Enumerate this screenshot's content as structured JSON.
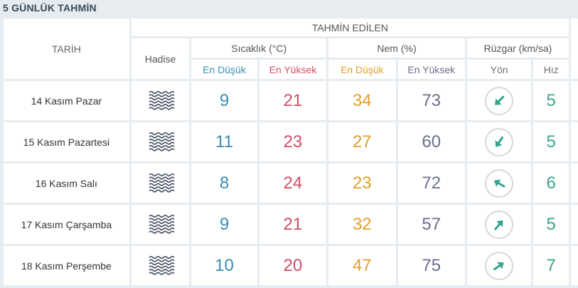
{
  "title": "5 GÜNLÜK TAHMİN",
  "headers": {
    "date": "TARİH",
    "forecast": "TAHMİN EDİLEN",
    "event": "Hadise",
    "temp": "Sıcaklık (°C)",
    "humidity": "Nem (%)",
    "wind": "Rüzgar (km/sa)",
    "low": "En Düşük",
    "high": "En Yüksek",
    "direction": "Yön",
    "speed": "Hız"
  },
  "colors": {
    "temp_low": "#3a8fb2",
    "temp_high": "#d24d68",
    "hum_low": "#e0a12c",
    "hum_high": "#6c6e8c",
    "wind": "#3aa58e"
  },
  "rows": [
    {
      "date": "14 Kasım Pazar",
      "icon": "fog-icon",
      "temp_low": "9",
      "temp_high": "21",
      "hum_low": "34",
      "hum_high": "73",
      "wind_dir_deg": 225,
      "wind_speed": "5"
    },
    {
      "date": "15 Kasım Pazartesi",
      "icon": "fog-icon",
      "temp_low": "11",
      "temp_high": "23",
      "hum_low": "27",
      "hum_high": "60",
      "wind_dir_deg": 215,
      "wind_speed": "5"
    },
    {
      "date": "16 Kasım Salı",
      "icon": "fog-icon",
      "temp_low": "8",
      "temp_high": "24",
      "hum_low": "23",
      "hum_high": "72",
      "wind_dir_deg": 300,
      "wind_speed": "6"
    },
    {
      "date": "17 Kasım Çarşamba",
      "icon": "fog-icon",
      "temp_low": "9",
      "temp_high": "21",
      "hum_low": "32",
      "hum_high": "57",
      "wind_dir_deg": 40,
      "wind_speed": "5"
    },
    {
      "date": "18 Kasım Perşembe",
      "icon": "fog-icon",
      "temp_low": "10",
      "temp_high": "20",
      "hum_low": "47",
      "hum_high": "75",
      "wind_dir_deg": 55,
      "wind_speed": "7"
    }
  ]
}
